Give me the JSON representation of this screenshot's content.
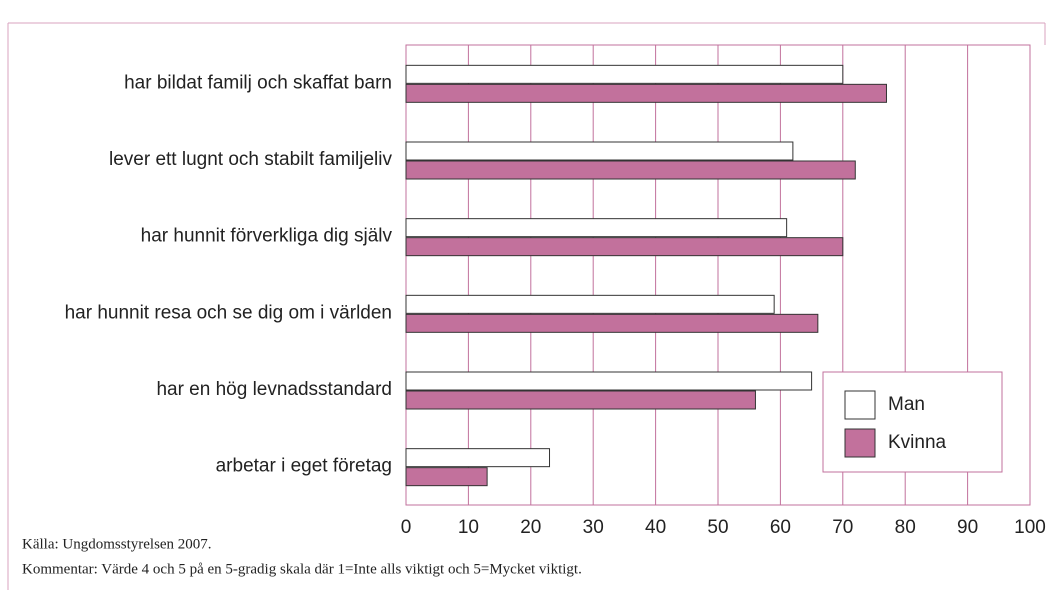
{
  "chart_data": {
    "type": "bar",
    "orientation": "horizontal",
    "categories": [
      "har bildat familj och skaffat barn",
      "lever ett lugnt och stabilt familjeliv",
      "har hunnit förverkliga dig själv",
      "har hunnit resa och se dig om i världen",
      "har en hög levnadsstandard",
      "arbetar i eget företag"
    ],
    "series": [
      {
        "name": "Man",
        "color": "#ffffff",
        "values": [
          70,
          62,
          61,
          59,
          65,
          23
        ]
      },
      {
        "name": "Kvinna",
        "color": "#c2719c",
        "values": [
          77,
          72,
          70,
          66,
          56,
          13
        ]
      }
    ],
    "xlim": [
      0,
      100
    ],
    "xticks": [
      0,
      10,
      20,
      30,
      40,
      50,
      60,
      70,
      80,
      90,
      100
    ],
    "grid": true,
    "legend": "lower right",
    "source": "Källa: Ungdomsstyrelsen 2007.",
    "comment": "Kommentar: Värde 4 och 5 på en 5-gradig skala där 1=Inte alls viktigt och 5=Mycket viktigt."
  }
}
